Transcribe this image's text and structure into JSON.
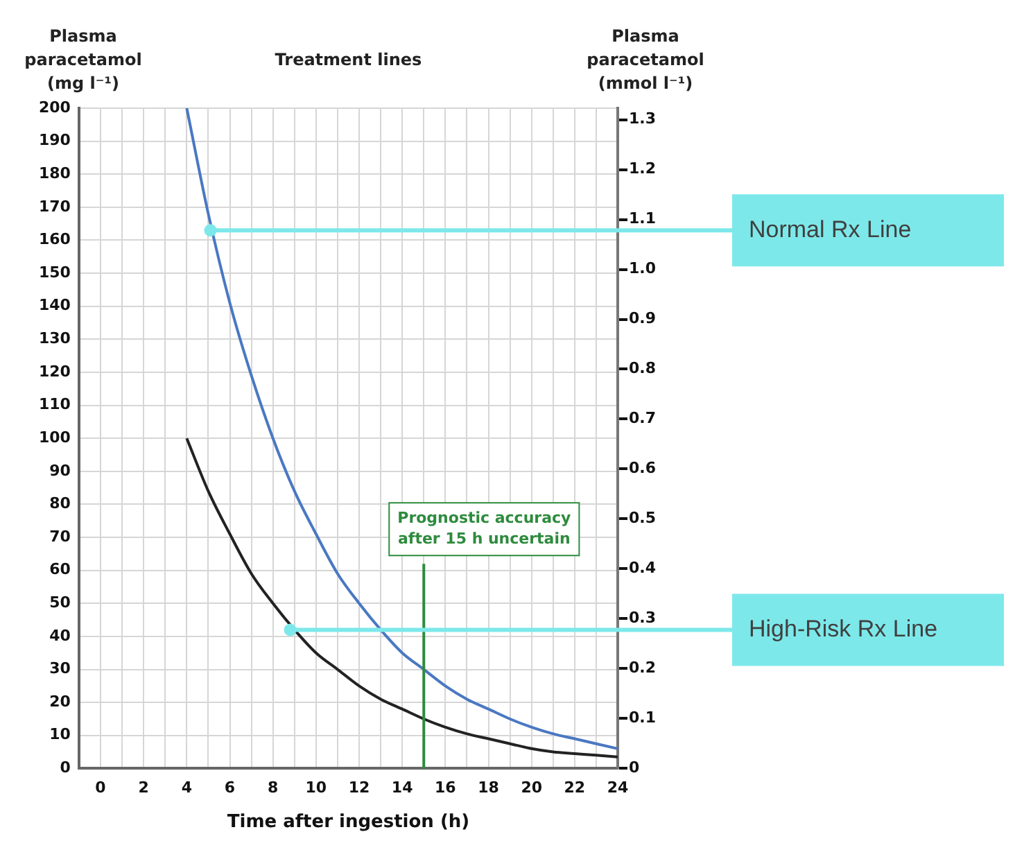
{
  "chart_data": {
    "type": "line",
    "title": "Treatment lines",
    "ylabel": "Plasma paracetamol (mg l⁻¹)",
    "y2label": "Plasma paracetamol (mmol l⁻¹)",
    "xlabel": "Time after ingestion (h)",
    "x": [
      4,
      5,
      6,
      7,
      8,
      9,
      10,
      11,
      12,
      13,
      14,
      15,
      16,
      17,
      18,
      19,
      20,
      21,
      22,
      23,
      24
    ],
    "series": [
      {
        "color": "#4a78c2",
        "values": [
          200,
          168,
          141,
          119,
          100,
          84,
          71,
          59,
          50,
          42,
          35,
          30,
          25,
          21,
          18,
          15,
          12.5,
          10.5,
          9,
          7.5,
          6
        ]
      },
      {
        "color": "#222222",
        "values": [
          100,
          84,
          71,
          59,
          50,
          42,
          35,
          30,
          25,
          21,
          18,
          15,
          12.5,
          10.5,
          9,
          7.5,
          6,
          5,
          4.5,
          4,
          3.5
        ]
      }
    ],
    "xlim": [
      -1,
      24
    ],
    "xticks": [
      0,
      {
        "value": 1,
        "label": null
      },
      2,
      {
        "value": 3,
        "label": null
      },
      4,
      {
        "value": 5,
        "label": null
      },
      6,
      {
        "value": 7,
        "label": null
      },
      8,
      {
        "value": 9,
        "label": null
      },
      10,
      {
        "value": 11,
        "label": null
      },
      12,
      {
        "value": 13,
        "label": null
      },
      14,
      {
        "value": 15,
        "label": null
      },
      16,
      {
        "value": 17,
        "label": null
      },
      18,
      {
        "value": 19,
        "label": null
      },
      20,
      {
        "value": 21,
        "label": null
      },
      22,
      {
        "value": 23,
        "label": null
      },
      24
    ],
    "ylim": [
      0,
      200
    ],
    "yticks": [
      0,
      10,
      20,
      30,
      40,
      50,
      60,
      70,
      80,
      90,
      100,
      110,
      120,
      130,
      140,
      150,
      160,
      170,
      180,
      190,
      200
    ],
    "y2lim": [
      0,
      1.323
    ],
    "y2ticks": [
      0,
      0.1,
      0.2,
      0.3,
      0.4,
      0.5,
      0.6,
      0.7,
      0.8,
      0.9,
      {
        "value": 1,
        "label": "1.0"
      },
      1.1,
      1.2,
      1.3
    ],
    "ref_lines": [
      {
        "axis": "x",
        "value": 15,
        "label": "Prognostic accuracy after 15 h uncertain",
        "color": "#2e8b3e"
      }
    ],
    "annotations": [
      {
        "text": "Normal Rx Line",
        "x": 5.1,
        "y": 163
      },
      {
        "text": "High-Risk Rx Line",
        "x": 8.8,
        "y": 42
      }
    ],
    "grid": true,
    "legend": false,
    "marker": "none",
    "line_style": "solid"
  }
}
